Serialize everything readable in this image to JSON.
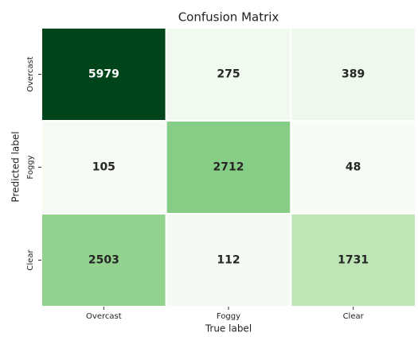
{
  "chart_data": {
    "type": "heatmap",
    "title": "Confusion Matrix",
    "x_label": "True label",
    "y_label": "Predicted label",
    "x_categories": [
      "Overcast",
      "Foggy",
      "Clear"
    ],
    "y_categories": [
      "Overcast",
      "Foggy",
      "Clear"
    ],
    "values": [
      [
        5979,
        275,
        389
      ],
      [
        105,
        2712,
        48
      ],
      [
        2503,
        112,
        1731
      ]
    ],
    "cmap": "Greens"
  }
}
